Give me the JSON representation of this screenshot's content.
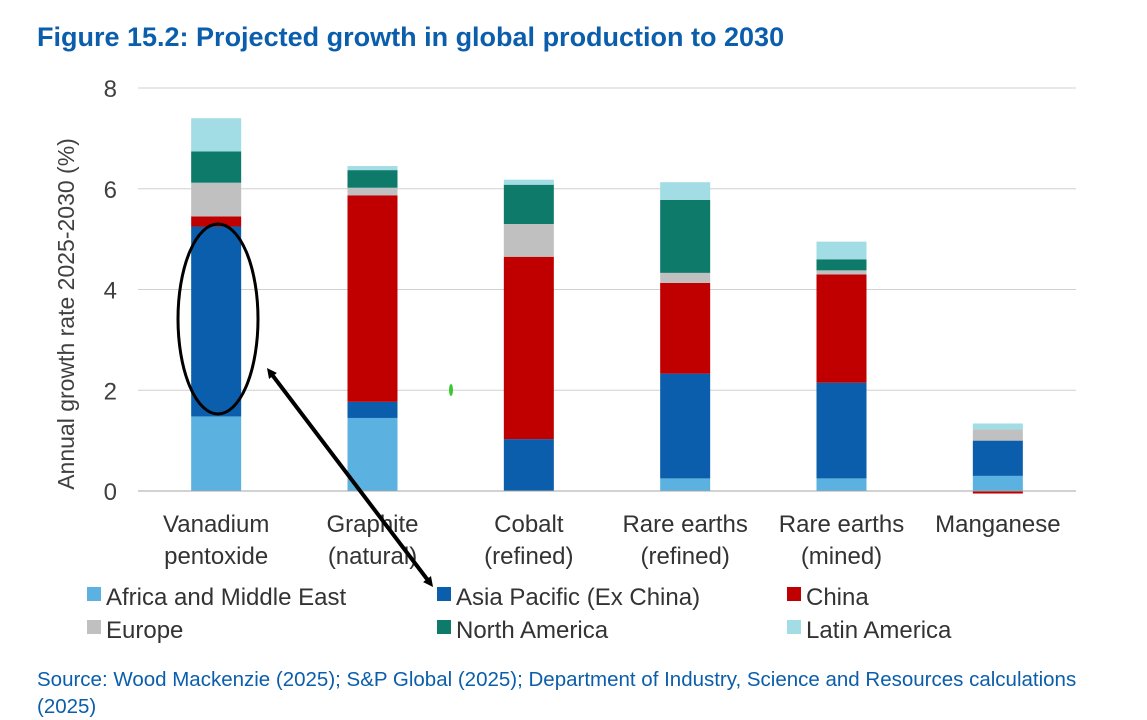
{
  "title": "Figure 15.2: Projected growth in global production to 2030",
  "source": "Source: Wood Mackenzie (2025); S&P Global (2025); Department of Industry, Science and Resources calculations (2025)",
  "chart_data": {
    "type": "bar",
    "stacked": true,
    "title": "Figure 15.2: Projected growth in global production to 2030",
    "ylabel": "Annual growth rate 2025-2030 (%)",
    "xlabel": "",
    "ylim": [
      0,
      8
    ],
    "yticks": [
      0,
      2,
      4,
      6,
      8
    ],
    "grid": true,
    "legend_position": "bottom",
    "categories": [
      [
        "Vanadium",
        "pentoxide"
      ],
      [
        "Graphite",
        "(natural)"
      ],
      [
        "Cobalt",
        "(refined)"
      ],
      [
        "Rare earths",
        "(refined)"
      ],
      [
        "Rare earths",
        "(mined)"
      ],
      [
        "Manganese"
      ]
    ],
    "series": [
      {
        "name": "Africa and Middle East",
        "color": "#5bb2e0",
        "values": [
          1.48,
          1.45,
          0.0,
          0.25,
          0.25,
          0.3
        ]
      },
      {
        "name": "Asia Pacific (Ex China)",
        "color": "#0b5eab",
        "values": [
          3.77,
          0.32,
          1.03,
          2.08,
          1.9,
          0.7
        ]
      },
      {
        "name": "China",
        "color": "#c00000",
        "values": [
          0.2,
          4.1,
          3.62,
          1.8,
          2.15,
          -0.05
        ]
      },
      {
        "name": "Europe",
        "color": "#c0c0c0",
        "values": [
          0.67,
          0.15,
          0.65,
          0.2,
          0.08,
          0.22
        ]
      },
      {
        "name": "North America",
        "color": "#0e7a6a",
        "values": [
          0.62,
          0.35,
          0.78,
          1.45,
          0.22,
          0.0
        ]
      },
      {
        "name": "Latin America",
        "color": "#a2dce4",
        "values": [
          0.66,
          0.08,
          0.1,
          0.35,
          0.35,
          0.12
        ]
      }
    ]
  }
}
